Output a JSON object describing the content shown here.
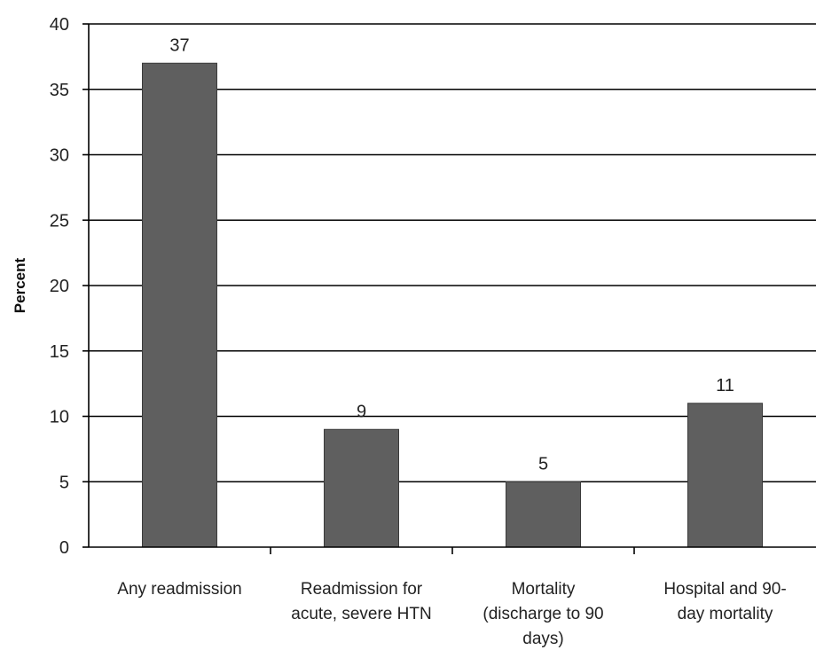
{
  "chart_data": {
    "type": "bar",
    "title": "",
    "xlabel": "",
    "ylabel": "Percent",
    "ylim": [
      0,
      40
    ],
    "yticks": [
      0,
      5,
      10,
      15,
      20,
      25,
      30,
      35,
      40
    ],
    "grid": true,
    "legend": "none",
    "bar_color": "#5f5f5f",
    "categories": [
      [
        "Any readmission"
      ],
      [
        "Readmission for",
        "acute, severe HTN"
      ],
      [
        "Mortality",
        "(discharge to 90",
        "days)"
      ],
      [
        "Hospital and 90-",
        "day mortality"
      ]
    ],
    "values": [
      37,
      9,
      5,
      11
    ],
    "data_labels": [
      "37",
      "9",
      "5",
      "11"
    ]
  }
}
